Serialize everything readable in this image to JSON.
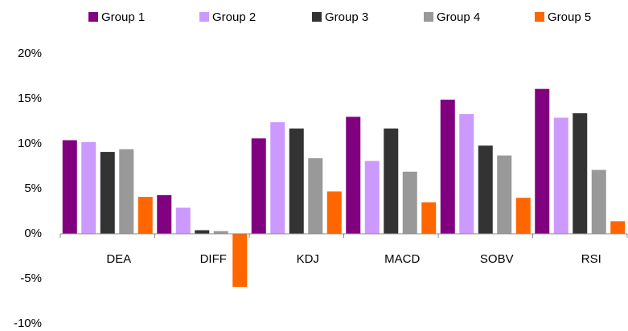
{
  "chart_data": {
    "type": "bar",
    "categories": [
      "DEA",
      "DIFF",
      "KDJ",
      "MACD",
      "SOBV",
      "RSI"
    ],
    "series": [
      {
        "name": "Group 1",
        "color": "#800080",
        "values": [
          10.4,
          4.3,
          10.6,
          13.0,
          14.9,
          16.1
        ]
      },
      {
        "name": "Group 2",
        "color": "#cc99ff",
        "values": [
          10.2,
          2.9,
          12.4,
          8.1,
          13.3,
          12.9
        ]
      },
      {
        "name": "Group 3",
        "color": "#333333",
        "values": [
          9.1,
          0.4,
          11.7,
          11.7,
          9.8,
          13.4
        ]
      },
      {
        "name": "Group 4",
        "color": "#999999",
        "values": [
          9.4,
          0.3,
          8.4,
          6.9,
          8.7,
          7.1
        ]
      },
      {
        "name": "Group 5",
        "color": "#ff6600",
        "values": [
          4.1,
          -5.9,
          4.7,
          3.5,
          4.0,
          1.4
        ]
      }
    ],
    "ylim": [
      -10,
      20
    ],
    "yticks": [
      {
        "value": -10,
        "label": "-10%"
      },
      {
        "value": -5,
        "label": "-5%"
      },
      {
        "value": 0,
        "label": "0%"
      },
      {
        "value": 5,
        "label": "5%"
      },
      {
        "value": 10,
        "label": "10%"
      },
      {
        "value": 15,
        "label": "15%"
      },
      {
        "value": 20,
        "label": "20%"
      }
    ],
    "grid": false
  }
}
